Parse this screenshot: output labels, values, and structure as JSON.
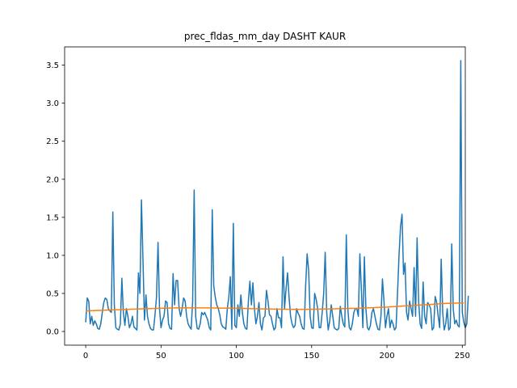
{
  "chart_data": {
    "type": "line",
    "title": "prec_fldas_mm_day DASHT KAUR",
    "xlabel": "",
    "ylabel": "",
    "xlim": [
      -14,
      252
    ],
    "ylim": [
      -0.18,
      3.74
    ],
    "x_ticks": [
      0,
      50,
      100,
      150,
      200,
      250
    ],
    "y_ticks": [
      0.0,
      0.5,
      1.0,
      1.5,
      2.0,
      2.5,
      3.0,
      3.5
    ],
    "y_tick_labels": [
      "0.0",
      "0.5",
      "1.0",
      "1.5",
      "2.0",
      "2.5",
      "3.0",
      "3.5"
    ],
    "grid": false,
    "series": [
      {
        "color": "#1f77b4",
        "x_start": 0,
        "values": [
          0.12,
          0.44,
          0.4,
          0.1,
          0.2,
          0.08,
          0.14,
          0.1,
          0.04,
          0.03,
          0.1,
          0.25,
          0.38,
          0.44,
          0.42,
          0.3,
          0.27,
          0.25,
          1.57,
          0.35,
          0.05,
          0.03,
          0.02,
          0.1,
          0.7,
          0.25,
          0.08,
          0.3,
          0.2,
          0.05,
          0.1,
          0.2,
          0.06,
          0.04,
          0.02,
          0.77,
          0.5,
          1.73,
          0.95,
          0.15,
          0.48,
          0.2,
          0.1,
          0.04,
          0.02,
          0.02,
          0.22,
          0.45,
          1.17,
          0.3,
          0.05,
          0.15,
          0.2,
          0.4,
          0.38,
          0.1,
          0.04,
          0.03,
          0.76,
          0.35,
          0.67,
          0.67,
          0.3,
          0.2,
          0.3,
          0.44,
          0.4,
          0.2,
          0.1,
          0.06,
          0.03,
          0.4,
          1.86,
          0.2,
          0.04,
          0.03,
          0.1,
          0.25,
          0.22,
          0.25,
          0.2,
          0.15,
          0.05,
          0.02,
          1.6,
          0.6,
          0.45,
          0.35,
          0.3,
          0.22,
          0.1,
          0.06,
          0.05,
          0.03,
          0.3,
          0.45,
          0.72,
          0.03,
          1.42,
          0.08,
          0.05,
          0.35,
          0.2,
          0.48,
          0.25,
          0.1,
          0.04,
          0.03,
          0.4,
          0.66,
          0.35,
          0.64,
          0.3,
          0.1,
          0.2,
          0.38,
          0.1,
          0.02,
          0.18,
          0.2,
          0.54,
          0.4,
          0.22,
          0.2,
          0.1,
          0.02,
          0.05,
          0.3,
          0.18,
          0.18,
          0.05,
          0.98,
          0.3,
          0.56,
          0.77,
          0.45,
          0.2,
          0.1,
          0.05,
          0.08,
          0.3,
          0.24,
          0.2,
          0.1,
          0.04,
          0.03,
          0.6,
          1.02,
          0.8,
          0.2,
          0.05,
          0.04,
          0.5,
          0.42,
          0.3,
          0.05,
          0.05,
          0.25,
          0.5,
          1.04,
          0.25,
          0.02,
          0.14,
          0.35,
          0.2,
          0.05,
          0.03,
          0.02,
          0.04,
          0.33,
          0.2,
          0.1,
          0.06,
          1.27,
          0.3,
          0.05,
          0.02,
          0.1,
          0.25,
          0.3,
          0.3,
          0.2,
          1.02,
          0.55,
          0.05,
          0.98,
          0.3,
          0.05,
          0.02,
          0.08,
          0.25,
          0.3,
          0.2,
          0.1,
          0.03,
          0.02,
          0.2,
          0.69,
          0.4,
          0.05,
          0.2,
          0.3,
          0.05,
          0.15,
          0.1,
          0.02,
          0.05,
          0.5,
          1.0,
          1.38,
          1.54,
          0.75,
          0.9,
          0.25,
          0.15,
          0.4,
          0.3,
          0.2,
          0.84,
          0.2,
          1.23,
          0.4,
          0.1,
          0.04,
          0.65,
          0.2,
          0.1,
          0.38,
          0.35,
          0.3,
          0.02,
          0.05,
          0.46,
          0.38,
          0.2,
          0.05,
          0.95,
          0.25,
          0.02,
          0.1,
          0.3,
          0.02,
          0.05,
          1.15,
          0.3,
          0.1,
          0.15,
          0.08,
          0.06,
          3.56,
          0.25,
          0.12,
          0.05,
          0.1,
          0.47
        ]
      },
      {
        "color": "#ff7f0e",
        "x": [
          0,
          20,
          40,
          60,
          80,
          100,
          120,
          140,
          160,
          180,
          200,
          220,
          240,
          251
        ],
        "values": [
          0.27,
          0.285,
          0.3,
          0.31,
          0.31,
          0.305,
          0.295,
          0.29,
          0.295,
          0.305,
          0.32,
          0.345,
          0.37,
          0.375
        ]
      }
    ]
  }
}
